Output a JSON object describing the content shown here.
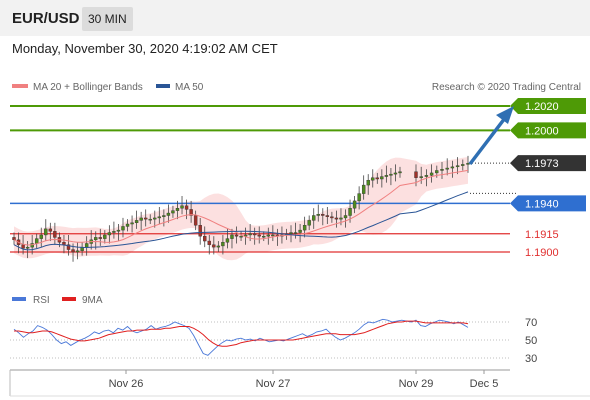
{
  "header": {
    "pair": "EUR/USD",
    "timeframe": "30 MIN"
  },
  "timestamp": "Monday, November 30, 2020 4:19:02 AM CET",
  "legend": {
    "bollinger": {
      "label": "MA 20 + Bollinger Bands",
      "color": "#f08080"
    },
    "ma50": {
      "label": "MA 50",
      "color": "#2a5596"
    },
    "rsi": {
      "label": "RSI",
      "color": "#4a78d8"
    },
    "rsi_ma": {
      "label": "9MA",
      "color": "#e02020"
    }
  },
  "copyright": "Research © 2020 Trading Central",
  "chart_data": {
    "type": "candlestick",
    "symbol": "EUR/USD",
    "timeframe": "30 MIN",
    "x_ticks": [
      "Nov 26",
      "Nov 27",
      "Nov 29",
      "Dec 5"
    ],
    "ylim": [
      1.188,
      1.2025
    ],
    "current_price": {
      "value": "1.1973",
      "color": "#333333"
    },
    "levels": [
      {
        "value": "1.2020",
        "kind": "target",
        "color": "#4e9a06"
      },
      {
        "value": "1.2000",
        "kind": "target",
        "color": "#4e9a06"
      },
      {
        "value": "1.1940",
        "kind": "pivot",
        "color": "#2f6fd0"
      },
      {
        "value": "1.1915",
        "kind": "support",
        "color": "#e03030"
      },
      {
        "value": "1.1900",
        "kind": "support",
        "color": "#e03030"
      }
    ],
    "close_path": [
      1.191,
      1.1906,
      1.1903,
      1.1904,
      1.1907,
      1.1911,
      1.1914,
      1.1919,
      1.1917,
      1.1912,
      1.1908,
      1.1906,
      1.1902,
      1.19,
      1.1901,
      1.1904,
      1.1907,
      1.191,
      1.1912,
      1.1911,
      1.1914,
      1.1916,
      1.1917,
      1.1918,
      1.1921,
      1.1923,
      1.1924,
      1.1926,
      1.1928,
      1.1927,
      1.1927,
      1.1928,
      1.1929,
      1.193,
      1.1932,
      1.1934,
      1.1936,
      1.1938,
      1.1935,
      1.193,
      1.1922,
      1.1913,
      1.1909,
      1.1906,
      1.1904,
      1.1905,
      1.1908,
      1.1911,
      1.1914,
      1.1913,
      1.1913,
      1.1914,
      1.1915,
      1.1914,
      1.1913,
      1.1913,
      1.1914,
      1.1914,
      1.1913,
      1.1914,
      1.1915,
      1.1916,
      1.1916,
      1.1918,
      1.1922,
      1.1926,
      1.193,
      1.1931,
      1.193,
      1.1929,
      1.1928,
      1.1927,
      1.1928,
      1.193,
      1.1936,
      1.1942,
      1.1948,
      1.1955,
      1.1959,
      1.1961,
      1.196,
      1.1962,
      1.1963,
      1.1964,
      1.1965,
      1.1966,
      1.1961,
      1.1962,
      1.1963,
      1.1965,
      1.1967,
      1.1968,
      1.1969,
      1.197,
      1.1971,
      1.1972,
      1.1973
    ],
    "rsi_axis": [
      30,
      50,
      70
    ],
    "rsi_values": [
      62,
      58,
      53,
      57,
      60,
      66,
      64,
      61,
      56,
      50,
      46,
      48,
      44,
      47,
      50,
      52,
      55,
      59,
      57,
      60,
      61,
      58,
      63,
      61,
      65,
      60,
      58,
      60,
      62,
      66,
      62,
      64,
      65,
      67,
      70,
      68,
      66,
      63,
      55,
      45,
      35,
      33,
      38,
      43,
      47,
      50,
      49,
      51,
      52,
      50,
      51,
      49,
      52,
      50,
      48,
      49,
      50,
      49,
      51,
      53,
      55,
      57,
      54,
      56,
      59,
      60,
      62,
      57,
      53,
      50,
      52,
      55,
      58,
      62,
      67,
      70,
      69,
      71,
      73,
      72,
      70,
      71,
      72,
      71,
      70,
      72,
      66,
      65,
      68,
      70,
      72,
      71,
      70,
      68,
      70,
      67,
      64
    ],
    "rsi_ma_values": [
      60,
      60,
      59,
      58,
      58,
      59,
      60,
      60,
      59,
      57,
      55,
      53,
      51,
      50,
      49,
      49,
      50,
      51,
      52,
      54,
      56,
      57,
      58,
      59,
      60,
      60,
      61,
      61,
      61,
      62,
      62,
      62,
      63,
      63,
      64,
      65,
      65,
      65,
      63,
      60,
      56,
      51,
      47,
      44,
      43,
      43,
      44,
      45,
      47,
      48,
      49,
      50,
      50,
      50,
      50,
      50,
      50,
      50,
      50,
      50,
      51,
      52,
      53,
      54,
      55,
      56,
      57,
      57,
      57,
      56,
      56,
      56,
      56,
      57,
      58,
      60,
      62,
      64,
      66,
      68,
      69,
      70,
      70,
      71,
      71,
      71,
      70,
      69,
      69,
      69,
      69,
      69,
      69,
      69,
      69,
      69,
      68
    ]
  }
}
